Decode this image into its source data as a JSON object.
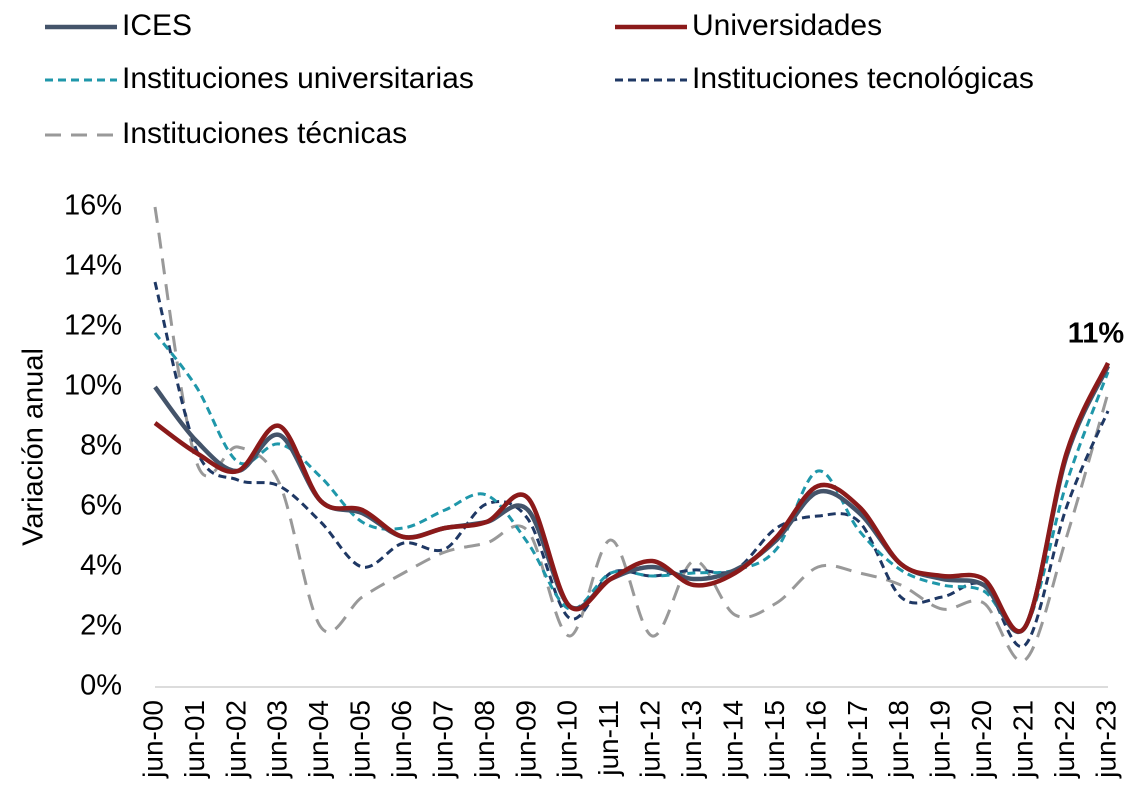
{
  "chart_data": {
    "type": "line",
    "y_label": "Variación anual",
    "categories": [
      "jun-00",
      "jun-01",
      "jun-02",
      "jun-03",
      "jun-04",
      "jun-05",
      "jun-06",
      "jun-07",
      "jun-08",
      "jun-09",
      "jun-10",
      "jun-11",
      "jun-12",
      "jun-13",
      "jun-14",
      "jun-15",
      "jun-16",
      "jun-17",
      "jun-18",
      "jun-19",
      "jun-20",
      "jun-21",
      "jun-22",
      "jun-23"
    ],
    "series": [
      {
        "name": "ICES",
        "color": "#44546a",
        "style": "solid",
        "values": [
          10,
          8.2,
          7.2,
          8.4,
          6.2,
          5.8,
          5.0,
          5.3,
          5.5,
          5.9,
          2.7,
          3.6,
          4.0,
          3.6,
          3.9,
          4.9,
          6.5,
          5.8,
          4.1,
          3.6,
          3.4,
          2.0,
          7.7,
          10.7
        ]
      },
      {
        "name": "Universidades",
        "color": "#8b1a1a",
        "style": "solid",
        "values": [
          8.8,
          7.8,
          7.2,
          8.7,
          6.2,
          5.9,
          5.0,
          5.3,
          5.5,
          6.3,
          2.7,
          3.6,
          4.2,
          3.4,
          3.8,
          5.0,
          6.7,
          6.0,
          4.1,
          3.7,
          3.6,
          2.0,
          7.8,
          10.8
        ],
        "value_labels": [
          null,
          null,
          null,
          null,
          null,
          null,
          null,
          null,
          null,
          null,
          null,
          null,
          null,
          null,
          null,
          null,
          null,
          null,
          null,
          null,
          null,
          null,
          null,
          "11%"
        ]
      },
      {
        "name": "Instituciones universitarias",
        "color": "#1f97aa",
        "style": "dash",
        "values": [
          11.8,
          10.0,
          7.5,
          8.1,
          7.0,
          5.5,
          5.3,
          5.9,
          6.4,
          4.8,
          2.6,
          3.8,
          3.7,
          3.8,
          3.9,
          4.6,
          7.2,
          5.2,
          3.9,
          3.4,
          3.2,
          2.0,
          6.8,
          10.5
        ]
      },
      {
        "name": "Instituciones tecnológicas",
        "color": "#1f3864",
        "style": "dash",
        "values": [
          13.5,
          7.9,
          6.9,
          6.7,
          5.5,
          4.0,
          4.8,
          4.6,
          6.1,
          5.6,
          2.3,
          3.8,
          3.7,
          3.9,
          3.9,
          5.3,
          5.7,
          5.5,
          3.0,
          3.0,
          3.4,
          1.4,
          6.0,
          9.2
        ]
      },
      {
        "name": "Instituciones técnicas",
        "color": "#999999",
        "style": "longdash",
        "values": [
          16,
          7.5,
          8.0,
          6.8,
          2.0,
          3.0,
          3.8,
          4.5,
          4.8,
          5.2,
          1.7,
          4.9,
          1.7,
          4.2,
          2.4,
          2.8,
          4.0,
          3.8,
          3.4,
          2.6,
          2.8,
          0.9,
          5.0,
          9.8
        ]
      }
    ],
    "ylim": [
      0,
      16
    ],
    "yticks": [
      {
        "value": 0,
        "label": "0%"
      },
      {
        "value": 2,
        "label": "2%"
      },
      {
        "value": 4,
        "label": "4%"
      },
      {
        "value": 6,
        "label": "6%"
      },
      {
        "value": 8,
        "label": "8%"
      },
      {
        "value": 10,
        "label": "10%"
      },
      {
        "value": 12,
        "label": "12%"
      },
      {
        "value": 14,
        "label": "14%"
      },
      {
        "value": 16,
        "label": "16%"
      }
    ],
    "grid": false,
    "legend": "top"
  }
}
